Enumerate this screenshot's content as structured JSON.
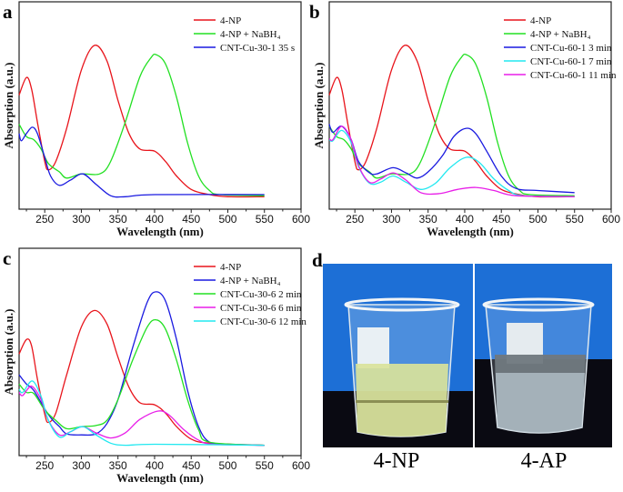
{
  "chart_data": [
    {
      "panel": "a",
      "type": "line",
      "xlabel": "Wavelength (nm)",
      "ylabel": "Absorption (a.u.)",
      "xlim": [
        215,
        600
      ],
      "ylim": [
        0,
        1
      ],
      "xticks": [
        250,
        300,
        350,
        400,
        450,
        500,
        550,
        600
      ],
      "grid": false,
      "legend": "top-right",
      "series": [
        {
          "name": "4-NP",
          "color": "#e8141b",
          "points": [
            [
              215,
              0.55
            ],
            [
              225,
              0.635
            ],
            [
              232,
              0.58
            ],
            [
              240,
              0.42
            ],
            [
              250,
              0.23
            ],
            [
              255,
              0.19
            ],
            [
              265,
              0.23
            ],
            [
              280,
              0.39
            ],
            [
              300,
              0.67
            ],
            [
              318,
              0.79
            ],
            [
              335,
              0.715
            ],
            [
              350,
              0.525
            ],
            [
              365,
              0.365
            ],
            [
              380,
              0.29
            ],
            [
              400,
              0.28
            ],
            [
              415,
              0.23
            ],
            [
              430,
              0.16
            ],
            [
              450,
              0.095
            ],
            [
              475,
              0.07
            ],
            [
              500,
              0.06
            ],
            [
              550,
              0.06
            ]
          ]
        },
        {
          "name": "4-NP + NaBH₄",
          "color": "#22e022",
          "points": [
            [
              215,
              0.41
            ],
            [
              225,
              0.35
            ],
            [
              235,
              0.335
            ],
            [
              245,
              0.29
            ],
            [
              255,
              0.22
            ],
            [
              270,
              0.18
            ],
            [
              280,
              0.15
            ],
            [
              300,
              0.17
            ],
            [
              325,
              0.17
            ],
            [
              340,
              0.23
            ],
            [
              360,
              0.42
            ],
            [
              380,
              0.64
            ],
            [
              395,
              0.73
            ],
            [
              402,
              0.745
            ],
            [
              415,
              0.7
            ],
            [
              430,
              0.54
            ],
            [
              445,
              0.32
            ],
            [
              460,
              0.16
            ],
            [
              475,
              0.09
            ],
            [
              490,
              0.07
            ],
            [
              550,
              0.065
            ]
          ]
        },
        {
          "name": "CNT-Cu-30-1 35 s",
          "color": "#1a1ae0",
          "points": [
            [
              215,
              0.365
            ],
            [
              218,
              0.33
            ],
            [
              225,
              0.365
            ],
            [
              233,
              0.395
            ],
            [
              240,
              0.365
            ],
            [
              250,
              0.25
            ],
            [
              258,
              0.16
            ],
            [
              270,
              0.115
            ],
            [
              285,
              0.14
            ],
            [
              302,
              0.17
            ],
            [
              320,
              0.12
            ],
            [
              340,
              0.065
            ],
            [
              360,
              0.06
            ],
            [
              400,
              0.07
            ],
            [
              550,
              0.07
            ]
          ]
        }
      ]
    },
    {
      "panel": "b",
      "type": "line",
      "xlabel": "Wavelength (nm)",
      "ylabel": "Absorption (a.u.)",
      "xlim": [
        215,
        600
      ],
      "ylim": [
        0,
        1
      ],
      "xticks": [
        250,
        300,
        350,
        400,
        450,
        500,
        550,
        600
      ],
      "grid": false,
      "legend": "top-right",
      "series": [
        {
          "name": "4-NP",
          "color": "#e8141b",
          "points": [
            [
              215,
              0.55
            ],
            [
              225,
              0.635
            ],
            [
              232,
              0.58
            ],
            [
              240,
              0.42
            ],
            [
              250,
              0.23
            ],
            [
              255,
              0.19
            ],
            [
              265,
              0.23
            ],
            [
              280,
              0.39
            ],
            [
              300,
              0.67
            ],
            [
              318,
              0.79
            ],
            [
              335,
              0.715
            ],
            [
              350,
              0.525
            ],
            [
              365,
              0.365
            ],
            [
              380,
              0.29
            ],
            [
              400,
              0.28
            ],
            [
              415,
              0.23
            ],
            [
              430,
              0.16
            ],
            [
              450,
              0.095
            ],
            [
              475,
              0.07
            ],
            [
              500,
              0.06
            ],
            [
              550,
              0.06
            ]
          ]
        },
        {
          "name": "4-NP + NaBH₄",
          "color": "#22e022",
          "points": [
            [
              215,
              0.4
            ],
            [
              225,
              0.35
            ],
            [
              235,
              0.335
            ],
            [
              245,
              0.29
            ],
            [
              255,
              0.22
            ],
            [
              270,
              0.18
            ],
            [
              280,
              0.15
            ],
            [
              300,
              0.17
            ],
            [
              325,
              0.17
            ],
            [
              340,
              0.23
            ],
            [
              360,
              0.42
            ],
            [
              380,
              0.64
            ],
            [
              395,
              0.73
            ],
            [
              402,
              0.745
            ],
            [
              415,
              0.7
            ],
            [
              430,
              0.54
            ],
            [
              445,
              0.32
            ],
            [
              460,
              0.16
            ],
            [
              475,
              0.09
            ],
            [
              490,
              0.07
            ],
            [
              550,
              0.065
            ]
          ]
        },
        {
          "name": "CNT-Cu-60-1 3 min",
          "color": "#1a1ae0",
          "points": [
            [
              215,
              0.41
            ],
            [
              220,
              0.37
            ],
            [
              232,
              0.4
            ],
            [
              245,
              0.335
            ],
            [
              255,
              0.23
            ],
            [
              270,
              0.175
            ],
            [
              280,
              0.17
            ],
            [
              302,
              0.2
            ],
            [
              320,
              0.175
            ],
            [
              335,
              0.15
            ],
            [
              350,
              0.18
            ],
            [
              370,
              0.26
            ],
            [
              385,
              0.35
            ],
            [
              402,
              0.39
            ],
            [
              415,
              0.365
            ],
            [
              430,
              0.28
            ],
            [
              450,
              0.16
            ],
            [
              470,
              0.1
            ],
            [
              500,
              0.09
            ],
            [
              550,
              0.08
            ]
          ]
        },
        {
          "name": "CNT-Cu-60-1 7 min",
          "color": "#22e8f0",
          "points": [
            [
              215,
              0.335
            ],
            [
              220,
              0.33
            ],
            [
              232,
              0.38
            ],
            [
              245,
              0.32
            ],
            [
              255,
              0.205
            ],
            [
              270,
              0.125
            ],
            [
              285,
              0.13
            ],
            [
              302,
              0.16
            ],
            [
              320,
              0.13
            ],
            [
              340,
              0.095
            ],
            [
              360,
              0.125
            ],
            [
              380,
              0.2
            ],
            [
              402,
              0.25
            ],
            [
              420,
              0.225
            ],
            [
              440,
              0.145
            ],
            [
              460,
              0.09
            ],
            [
              480,
              0.065
            ],
            [
              550,
              0.06
            ]
          ]
        },
        {
          "name": "CNT-Cu-60-1 11 min",
          "color": "#e81ee8",
          "points": [
            [
              215,
              0.34
            ],
            [
              220,
              0.335
            ],
            [
              232,
              0.4
            ],
            [
              245,
              0.335
            ],
            [
              255,
              0.21
            ],
            [
              270,
              0.13
            ],
            [
              285,
              0.145
            ],
            [
              302,
              0.175
            ],
            [
              320,
              0.14
            ],
            [
              340,
              0.08
            ],
            [
              365,
              0.075
            ],
            [
              390,
              0.095
            ],
            [
              415,
              0.105
            ],
            [
              440,
              0.09
            ],
            [
              470,
              0.065
            ],
            [
              550,
              0.06
            ]
          ]
        }
      ]
    },
    {
      "panel": "c",
      "type": "line",
      "xlabel": "Wavelength (nm)",
      "ylabel": "Absorption (a.u.)",
      "xlim": [
        215,
        600
      ],
      "ylim": [
        0,
        1
      ],
      "xticks": [
        250,
        300,
        350,
        400,
        450,
        500,
        550,
        600
      ],
      "grid": false,
      "legend": "top-right",
      "series": [
        {
          "name": "4-NP",
          "color": "#e8141b",
          "points": [
            [
              215,
              0.49
            ],
            [
              225,
              0.56
            ],
            [
              232,
              0.53
            ],
            [
              240,
              0.37
            ],
            [
              250,
              0.2
            ],
            [
              255,
              0.16
            ],
            [
              265,
              0.205
            ],
            [
              280,
              0.39
            ],
            [
              300,
              0.62
            ],
            [
              318,
              0.7
            ],
            [
              335,
              0.635
            ],
            [
              350,
              0.475
            ],
            [
              365,
              0.33
            ],
            [
              380,
              0.255
            ],
            [
              400,
              0.245
            ],
            [
              415,
              0.205
            ],
            [
              430,
              0.14
            ],
            [
              450,
              0.08
            ],
            [
              475,
              0.06
            ],
            [
              550,
              0.05
            ]
          ]
        },
        {
          "name": "4-NP + NaBH₄",
          "color": "#1a1ae0",
          "points": [
            [
              215,
              0.39
            ],
            [
              225,
              0.345
            ],
            [
              235,
              0.315
            ],
            [
              250,
              0.225
            ],
            [
              260,
              0.175
            ],
            [
              270,
              0.14
            ],
            [
              280,
              0.105
            ],
            [
              300,
              0.1
            ],
            [
              320,
              0.105
            ],
            [
              335,
              0.155
            ],
            [
              350,
              0.27
            ],
            [
              370,
              0.52
            ],
            [
              390,
              0.74
            ],
            [
              402,
              0.79
            ],
            [
              415,
              0.745
            ],
            [
              430,
              0.56
            ],
            [
              445,
              0.315
            ],
            [
              460,
              0.14
            ],
            [
              475,
              0.065
            ],
            [
              500,
              0.055
            ],
            [
              550,
              0.05
            ]
          ]
        },
        {
          "name": "CNT-Cu-30-6 2 min",
          "color": "#22e022",
          "points": [
            [
              215,
              0.345
            ],
            [
              225,
              0.305
            ],
            [
              235,
              0.3
            ],
            [
              250,
              0.22
            ],
            [
              265,
              0.17
            ],
            [
              280,
              0.13
            ],
            [
              300,
              0.14
            ],
            [
              320,
              0.145
            ],
            [
              335,
              0.17
            ],
            [
              350,
              0.27
            ],
            [
              370,
              0.46
            ],
            [
              390,
              0.62
            ],
            [
              402,
              0.655
            ],
            [
              415,
              0.61
            ],
            [
              430,
              0.46
            ],
            [
              445,
              0.27
            ],
            [
              460,
              0.125
            ],
            [
              475,
              0.065
            ],
            [
              550,
              0.05
            ]
          ]
        },
        {
          "name": "CNT-Cu-30-6 6 min",
          "color": "#e81ee8",
          "points": [
            [
              215,
              0.305
            ],
            [
              220,
              0.29
            ],
            [
              232,
              0.335
            ],
            [
              245,
              0.27
            ],
            [
              255,
              0.17
            ],
            [
              270,
              0.1
            ],
            [
              285,
              0.115
            ],
            [
              302,
              0.14
            ],
            [
              320,
              0.11
            ],
            [
              340,
              0.085
            ],
            [
              360,
              0.11
            ],
            [
              380,
              0.175
            ],
            [
              405,
              0.215
            ],
            [
              420,
              0.195
            ],
            [
              440,
              0.125
            ],
            [
              460,
              0.075
            ],
            [
              480,
              0.055
            ],
            [
              550,
              0.05
            ]
          ]
        },
        {
          "name": "CNT-Cu-30-6 12 min",
          "color": "#22e8f0",
          "points": [
            [
              215,
              0.32
            ],
            [
              220,
              0.305
            ],
            [
              233,
              0.36
            ],
            [
              245,
              0.285
            ],
            [
              255,
              0.17
            ],
            [
              270,
              0.09
            ],
            [
              285,
              0.115
            ],
            [
              302,
              0.14
            ],
            [
              320,
              0.1
            ],
            [
              340,
              0.06
            ],
            [
              360,
              0.05
            ],
            [
              400,
              0.055
            ],
            [
              550,
              0.05
            ]
          ]
        }
      ]
    }
  ],
  "photo_panel": {
    "panel": "d",
    "labels": [
      "4-NP",
      "4-AP"
    ],
    "colors": {
      "background": "#1d6fd6",
      "table": "#0a0a12",
      "yellow_solution": "#d9e39a",
      "clear_solution": "#b9c7cf"
    }
  }
}
